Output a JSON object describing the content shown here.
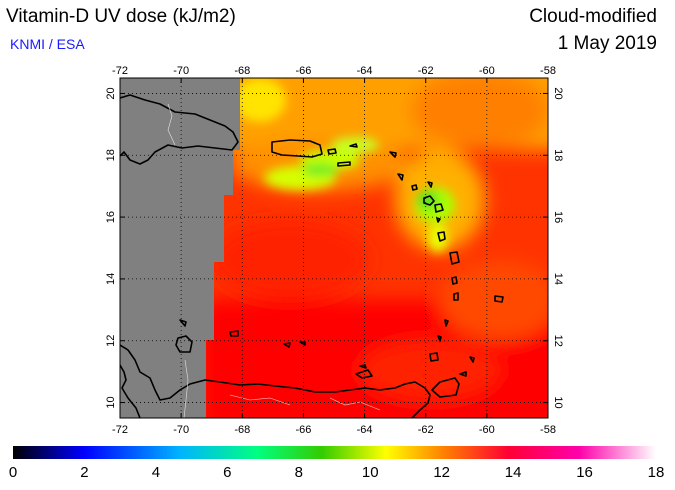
{
  "header": {
    "title": "Vitamin-D UV dose (kJ/m2)",
    "subtitle": "KNMI / ESA",
    "product": "Cloud-modified",
    "date": "1 May 2019"
  },
  "map": {
    "lon_ticks": [
      "-72",
      "-70",
      "-68",
      "-66",
      "-64",
      "-62",
      "-60",
      "-58"
    ],
    "lat_ticks": [
      "10",
      "12",
      "14",
      "16",
      "18",
      "20"
    ],
    "lon_range": [
      -72,
      -58
    ],
    "lat_range": [
      9.5,
      20.5
    ],
    "grid": "dotted",
    "no_data_color": "#808080"
  },
  "colorbar": {
    "labels": [
      "0",
      "2",
      "4",
      "6",
      "8",
      "10",
      "12",
      "14",
      "16",
      "18"
    ],
    "colors": [
      "#000000",
      "#0000ff",
      "#00b4ff",
      "#00ff80",
      "#33cc00",
      "#ffff00",
      "#ff8000",
      "#ff0033",
      "#ff00aa",
      "#ffffff"
    ]
  }
}
